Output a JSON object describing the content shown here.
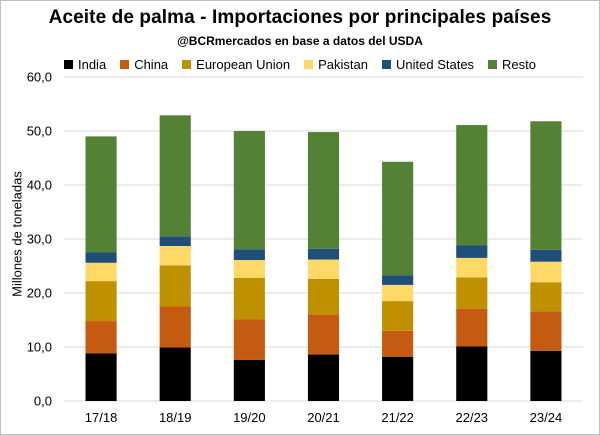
{
  "chart_data": {
    "type": "bar",
    "stacked": true,
    "title": "Aceite de palma - Importaciones por principales países",
    "subtitle": "@BCRmercados en base a datos del USDA",
    "xlabel": "",
    "ylabel": "Millones de toneladas",
    "ylim": [
      0,
      60
    ],
    "yticks": [
      "0,0",
      "10,0",
      "20,0",
      "30,0",
      "40,0",
      "50,0",
      "60,0"
    ],
    "ytick_values": [
      0,
      10,
      20,
      30,
      40,
      50,
      60
    ],
    "grid": true,
    "legend_position": "top",
    "categories": [
      "17/18",
      "18/19",
      "19/20",
      "20/21",
      "21/22",
      "22/23",
      "23/24"
    ],
    "series": [
      {
        "name": "India",
        "color": "#000000",
        "values": [
          8.8,
          9.9,
          7.6,
          8.6,
          8.2,
          10.1,
          9.3
        ]
      },
      {
        "name": "China",
        "color": "#c55a11",
        "values": [
          6.0,
          7.6,
          7.5,
          7.4,
          4.8,
          7.0,
          7.3
        ]
      },
      {
        "name": "European Union",
        "color": "#bf9000",
        "values": [
          7.4,
          7.6,
          7.7,
          6.6,
          5.5,
          5.8,
          5.4
        ]
      },
      {
        "name": "Pakistan",
        "color": "#ffd966",
        "values": [
          3.4,
          3.6,
          3.3,
          3.6,
          3.0,
          3.6,
          3.8
        ]
      },
      {
        "name": "United States",
        "color": "#1f4e79",
        "values": [
          1.9,
          1.8,
          2.0,
          2.0,
          1.8,
          2.3,
          2.2
        ]
      },
      {
        "name": "Resto",
        "color": "#548235",
        "values": [
          21.5,
          22.4,
          21.9,
          21.6,
          21.0,
          22.3,
          23.8
        ]
      }
    ]
  }
}
